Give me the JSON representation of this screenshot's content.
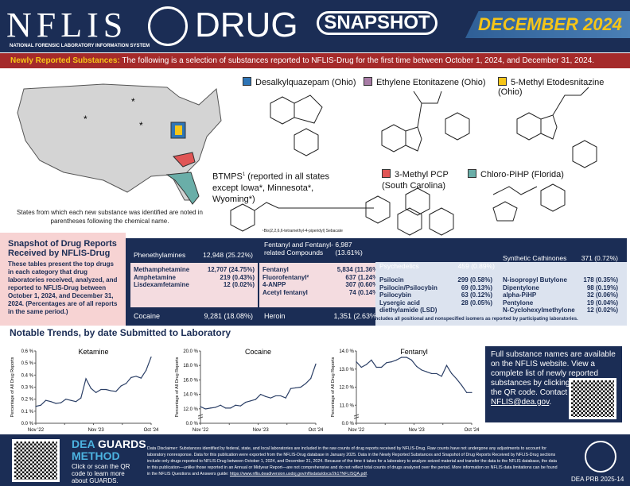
{
  "header": {
    "logo": "NFLIS",
    "logo_subtitle": "NATIONAL FORENSIC LABORATORY INFORMATION SYSTEM",
    "drug": "DRUG",
    "snapshot": "SNAPSHOT",
    "month": "DECEMBER 2024"
  },
  "banner": {
    "label": "Newly Reported Substances:",
    "text": " The following is a selection of substances reported to NFLIS-Drug for the first time between October 1, 2024, and December 31, 2024."
  },
  "map": {
    "caption": "States from which each new substance was identified are noted in parentheses following the chemical name."
  },
  "substances": [
    {
      "name": "Desalkylquazepam (Ohio)",
      "color": "#2e75b6"
    },
    {
      "name": "Ethylene Etonitazene (Ohio)",
      "color": "#a87ca6"
    },
    {
      "name": "5-Methyl Etodesnitazine (Ohio)",
      "color": "#f5c518"
    },
    {
      "name": "BTMPS",
      "sup": "1",
      "extra": " (reported in all states except Iowa*, Minnesota*, Wyoming*)",
      "footnote": "¹Bis(2,2,6,6-tetramethyl-4-piperidyl) Sebacate"
    },
    {
      "name": "3-Methyl PCP (South Carolina)",
      "color": "#e05555"
    },
    {
      "name": "Chloro-PiHP (Florida)",
      "color": "#6aaea8"
    }
  ],
  "snapshot": {
    "title": "Snapshot of Drug Reports Received by NFLIS-Drug",
    "text": "These tables present the top drugs in each category that drug laboratories received, analyzed, and reported to NFLIS-Drug between October 1, 2024, and December 31, 2024. (Percentages are of all reports in the same period.)",
    "categories": [
      {
        "name": "Phenethylamines",
        "total": "12,948 (25.22%)",
        "rows": [
          [
            "Methamphetamine",
            "12,707 (24.75%)"
          ],
          [
            "Amphetamine",
            "219 (0.43%)"
          ],
          [
            "Lisdexamfetamine",
            "12 (0.02%)"
          ]
        ]
      },
      {
        "name": "Fentanyl and Fentanyl-related Compounds",
        "total": "6,987 (13.61%)",
        "rows": [
          [
            "Fentanyl",
            "5,834 (11.36%)"
          ],
          [
            "Fluorofentanyl²",
            "637 (1.24%)"
          ],
          [
            "4-ANPP",
            "307 (0.60%)"
          ],
          [
            "Acetyl fentanyl",
            "74 (0.14%)"
          ]
        ]
      },
      {
        "name": "Psychedelics",
        "total": "459 (0.89%)",
        "rows": [
          [
            "Psilocin",
            "299 (0.58%)"
          ],
          [
            "Psilocin/Psilocybin",
            "69 (0.13%)"
          ],
          [
            "Psilocybin",
            "63 (0.12%)"
          ],
          [
            "Lysergic acid diethylamide (LSD)",
            "28 (0.05%)"
          ]
        ]
      },
      {
        "name": "Synthetic Cathinones",
        "total": "371 (0.72%)",
        "rows": [
          [
            "N-isopropyl Butylone",
            "178 (0.35%)"
          ],
          [
            "Dipentylone",
            "98 (0.19%)"
          ],
          [
            "alpha-PiHP",
            "32 (0.06%)"
          ],
          [
            "Pentylone",
            "19 (0.04%)"
          ],
          [
            "N-Cyclohexylmethylone",
            "12 (0.02%)"
          ]
        ]
      }
    ],
    "cocaine": {
      "name": "Cocaine",
      "total": "9,281 (18.08%)"
    },
    "heroin": {
      "name": "Heroin",
      "total": "1,351 (2.63%)"
    },
    "footnote": "²Includes all positional and nonspecified isomers as reported by participating laboratories."
  },
  "trends": {
    "title": "Notable Trends, by date Submitted to Laboratory"
  },
  "chart_data": [
    {
      "type": "line",
      "title": "Ketamine",
      "ylabel": "Percentage of All Drug Reports",
      "yticks": [
        "0.0 %",
        "0.1 %",
        "0.2 %",
        "0.3 %",
        "0.4 %",
        "0.5 %",
        "0.6 %"
      ],
      "ytick_values": [
        0,
        0.1,
        0.2,
        0.3,
        0.4,
        0.5,
        0.6
      ],
      "xtick_labels": [
        "Nov '22",
        "Nov '23",
        "Oct '24"
      ],
      "color": "#2b3f66",
      "values": [
        0.14,
        0.15,
        0.19,
        0.18,
        0.165,
        0.17,
        0.2,
        0.19,
        0.18,
        0.21,
        0.37,
        0.29,
        0.255,
        0.28,
        0.28,
        0.27,
        0.265,
        0.31,
        0.33,
        0.38,
        0.39,
        0.375,
        0.44,
        0.55
      ]
    },
    {
      "type": "line",
      "title": "Cocaine",
      "ylabel": "Percentage of All Drug Reports",
      "yticks": [
        "0.0 %",
        "12.0 %",
        "14.0 %",
        "16.0 %",
        "18.0 %",
        "20.0 %"
      ],
      "ytick_values": [
        0,
        12,
        14,
        16,
        18,
        20
      ],
      "axis_break": true,
      "xtick_labels": [
        "Nov '22",
        "Nov '23",
        "Oct '24"
      ],
      "color": "#2b3f66",
      "values": [
        12.3,
        11.9,
        12.1,
        12.2,
        12.5,
        12.1,
        12.1,
        12.5,
        12.4,
        12.9,
        13.1,
        13.3,
        14.0,
        13.7,
        13.5,
        13.8,
        13.8,
        13.5,
        14.8,
        14.9,
        15.0,
        15.5,
        16.2,
        18.2
      ]
    },
    {
      "type": "line",
      "title": "Fentanyl",
      "ylabel": "Percentage of All Drug Reports",
      "yticks": [
        "0.0 %",
        "11.0 %",
        "12.0 %",
        "13.0 %",
        "14.0 %"
      ],
      "ytick_values": [
        0,
        11,
        12,
        13,
        14
      ],
      "axis_break": true,
      "xtick_labels": [
        "Nov '22",
        "Nov '23",
        "Oct '24"
      ],
      "color": "#2b3f66",
      "values": [
        13.4,
        13.1,
        13.25,
        13.5,
        13.1,
        13.1,
        13.35,
        13.4,
        13.5,
        13.65,
        13.65,
        13.5,
        13.15,
        12.95,
        12.85,
        12.75,
        12.75,
        12.6,
        13.2,
        12.75,
        12.45,
        12.1,
        11.7,
        11.7
      ]
    }
  ],
  "info": {
    "text": "Full substance names are available on the NFLIS website. View a complete list of newly reported substances by clicking or scanning the QR code. Contact us at ",
    "email": "NFLIS@dea.gov",
    "end": "."
  },
  "footer": {
    "guards_a": "DEA ",
    "guards_b": "GUARDS",
    "guards_c": "METHOD",
    "guards_desc": "Click or scan the QR code to learn more about GUARDS.",
    "disclaimer": "Data Disclaimer: Substances identified by federal, state, and local laboratories are included in the raw counts of drug reports received by NFLIS-Drug. Raw counts have not undergone any adjustments to account for laboratory nonresponse. Data for this publication were exported from the NFLIS-Drug database in January 2025. Data in the Newly Reported Substances and Snapshot of Drug Reports Received by NFLIS-Drug sections include only drugs reported to NFLIS-Drug between October 1, 2024, and December 31, 2024. Because of the time it takes for a laboratory to analyze seized material and transfer the data to the NFLIS database, the data in this publication—unlike those reported in an Annual or Midyear Report—are not comprehensive and do not reflect total counts of drugs analyzed over the period. More information on NFLIS data limitations can be found in the NFLIS Questions and Answers guide: ",
    "link": "https://www.nflis.deadiversion.usdoj.gov/nflisdata/docs/2k17NFLISQA.pdf",
    "end": ".",
    "code": "DEA PRB 2025-14"
  }
}
